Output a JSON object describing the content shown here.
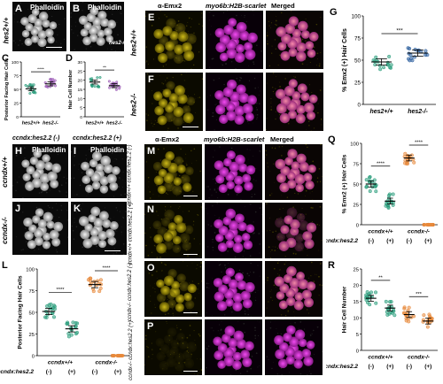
{
  "labels": {
    "A": "A",
    "B": "B",
    "C": "C",
    "D": "D",
    "E": "E",
    "F": "F",
    "G": "G",
    "H": "H",
    "I": "I",
    "J": "J",
    "K": "K",
    "L": "L",
    "M": "M",
    "N": "N",
    "O": "O",
    "P": "P",
    "Q": "Q",
    "R": "R"
  },
  "phalloidin": "Phalloidin",
  "rows": {
    "hes_wt": "hes2+/+",
    "hes_ko": "hes2-/-",
    "ccnd_wt": "ccndx+/+",
    "ccnd_ko": "ccndx-/-"
  },
  "cols_top": {
    "emx2": "α-Emx2",
    "myo6b": "myo6b:H2B-scarlet",
    "merged": "Merged"
  },
  "hk_headers": {
    "minus": "ccndx:hes2.2 (-)",
    "plus": "ccndx:hes2.2 (+)"
  },
  "mp_rows": {
    "M": "ccndx+/+ ccndx:hes2.2 (-)",
    "N": "ccndx+/+ ccndx:hes2.2 (+)",
    "O": "ccndx-/- ccndx:hes2.2 (-)",
    "P": "ccndx-/- ccndx:hes2.2 (+)"
  },
  "chart_data": [
    {
      "panel": "C",
      "type": "scatter",
      "ylabel": "Posterior Facing Hair Cells",
      "ylim": [
        0,
        100
      ],
      "yticks": [
        0,
        25,
        50,
        75,
        100
      ],
      "categories": [
        "hes2+/+",
        "hes2-/-"
      ],
      "colors": [
        "#2a9d7c",
        "#9b59b6"
      ],
      "means": [
        51,
        60
      ],
      "sig": [
        {
          "from": 0,
          "to": 1,
          "text": "****"
        }
      ]
    },
    {
      "panel": "D",
      "type": "scatter",
      "ylabel": "Hair Cell Number",
      "ylim": [
        0,
        30
      ],
      "yticks": [
        0,
        5,
        10,
        15,
        20,
        25,
        30
      ],
      "categories": [
        "hes2+/+",
        "hes2-/-"
      ],
      "colors": [
        "#2a9d7c",
        "#9b59b6"
      ],
      "means": [
        19,
        17
      ],
      "sig": [
        {
          "from": 0,
          "to": 1,
          "text": "**"
        }
      ]
    },
    {
      "panel": "G",
      "type": "scatter",
      "ylabel": "% Emx2 (+) Hair Cells",
      "ylim": [
        0,
        100
      ],
      "yticks": [
        0,
        25,
        50,
        75,
        100
      ],
      "categories": [
        "hes2+/+",
        "hes2-/-"
      ],
      "colors": [
        "#2a9d7c",
        "#2b5f9e"
      ],
      "means": [
        48,
        58
      ],
      "sig": [
        {
          "from": 0,
          "to": 1,
          "text": "***"
        }
      ]
    },
    {
      "panel": "L",
      "type": "scatter",
      "ylabel": "Posterior Facing Hair Cells",
      "ylim": [
        0,
        100
      ],
      "yticks": [
        0,
        25,
        50,
        75,
        100
      ],
      "categories": [
        "(-)",
        "(+)",
        "(-)",
        "(+)"
      ],
      "groups": [
        "ccndx+/+",
        "ccndx-/-"
      ],
      "row_label": "ccndx:hes2.2",
      "colors": [
        "#2a9d7c",
        "#2a9d7c",
        "#e8893a",
        "#e8893a"
      ],
      "means": [
        51,
        31,
        82,
        0
      ],
      "sig": [
        {
          "from": 0,
          "to": 1,
          "text": "****"
        },
        {
          "from": 2,
          "to": 3,
          "text": "****"
        }
      ]
    },
    {
      "panel": "Q",
      "type": "scatter",
      "ylabel": "% Emx2 (+) Hair Cells",
      "ylim": [
        0,
        100
      ],
      "yticks": [
        0,
        25,
        50,
        75,
        100
      ],
      "categories": [
        "(-)",
        "(+)",
        "(-)",
        "(+)"
      ],
      "groups": [
        "ccndx+/+",
        "ccndx-/-"
      ],
      "row_label": "ccndx:hes2.2",
      "colors": [
        "#2a9d7c",
        "#2a9d7c",
        "#e8893a",
        "#e8893a"
      ],
      "means": [
        50,
        29,
        82,
        0
      ],
      "sig": [
        {
          "from": 0,
          "to": 1,
          "text": "****"
        },
        {
          "from": 2,
          "to": 3,
          "text": "****"
        }
      ]
    },
    {
      "panel": "R",
      "type": "scatter",
      "ylabel": "Hair Cell Number",
      "ylim": [
        0,
        25
      ],
      "yticks": [
        0,
        5,
        10,
        15,
        20,
        25
      ],
      "categories": [
        "(-)",
        "(+)",
        "(-)",
        "(+)"
      ],
      "groups": [
        "ccndx+/+",
        "ccndx-/-"
      ],
      "row_label": "ccndx:hes2.2",
      "colors": [
        "#2a9d7c",
        "#2a9d7c",
        "#e8893a",
        "#e8893a"
      ],
      "means": [
        16,
        13,
        11,
        9
      ],
      "sig": [
        {
          "from": 0,
          "to": 1,
          "text": "**"
        },
        {
          "from": 2,
          "to": 3,
          "text": "***"
        }
      ]
    }
  ]
}
